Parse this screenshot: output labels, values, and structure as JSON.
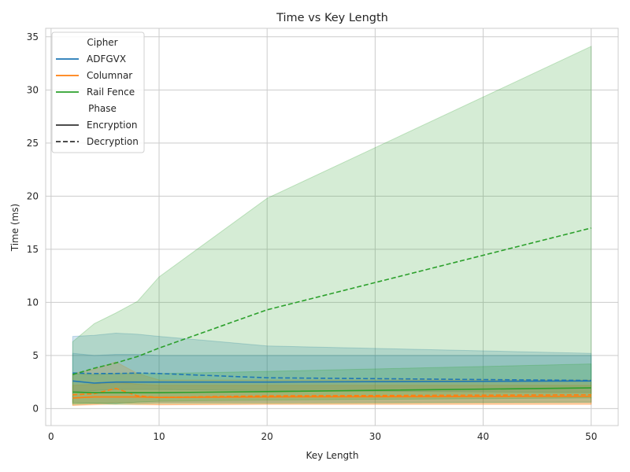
{
  "chart_data": {
    "type": "line",
    "title": "Time vs Key Length",
    "xlabel": "Key Length",
    "ylabel": "Time (ms)",
    "xlim": [
      -0.5,
      52.5
    ],
    "ylim": [
      -1.6,
      35.8
    ],
    "xticks": [
      0,
      10,
      20,
      30,
      40,
      50
    ],
    "yticks": [
      0,
      5,
      10,
      15,
      20,
      25,
      30,
      35
    ],
    "grid": true,
    "legend": {
      "placement": "top-left",
      "hue_title": "Cipher",
      "style_title": "Phase",
      "hue_entries": [
        {
          "label": "ADFGVX",
          "color": "#1f77b4"
        },
        {
          "label": "Columnar",
          "color": "#ff7f0e"
        },
        {
          "label": "Rail Fence",
          "color": "#2ca02c"
        }
      ],
      "style_entries": [
        {
          "label": "Encryption",
          "dash": "solid"
        },
        {
          "label": "Decryption",
          "dash": "dashed"
        }
      ]
    },
    "x": [
      2,
      4,
      6,
      8,
      10,
      20,
      50
    ],
    "series": [
      {
        "cipher": "ADFGVX",
        "phase": "Encryption",
        "color": "#1f77b4",
        "dash": "solid",
        "values": [
          2.6,
          2.4,
          2.5,
          2.5,
          2.5,
          2.5,
          2.6
        ],
        "ci_low": [
          0.6,
          0.5,
          0.5,
          0.6,
          0.6,
          0.6,
          0.6
        ],
        "ci_high": [
          6.8,
          6.9,
          7.1,
          7.0,
          6.8,
          5.9,
          5.2
        ]
      },
      {
        "cipher": "ADFGVX",
        "phase": "Decryption",
        "color": "#1f77b4",
        "dash": "dashed",
        "values": [
          3.35,
          3.3,
          3.3,
          3.35,
          3.3,
          2.9,
          2.65
        ],
        "ci_low": [
          1.6,
          1.7,
          1.8,
          1.8,
          1.8,
          1.7,
          1.5
        ],
        "ci_high": [
          5.2,
          5.0,
          5.1,
          5.1,
          5.0,
          5.0,
          5.0
        ]
      },
      {
        "cipher": "Columnar",
        "phase": "Encryption",
        "color": "#ff7f0e",
        "dash": "solid",
        "values": [
          1.0,
          1.1,
          1.1,
          1.1,
          1.05,
          1.1,
          1.15
        ],
        "ci_low": [
          0.3,
          0.35,
          0.4,
          0.35,
          0.35,
          0.4,
          0.4
        ],
        "ci_high": [
          2.2,
          2.3,
          2.5,
          2.3,
          2.2,
          2.2,
          2.2
        ]
      },
      {
        "cipher": "Columnar",
        "phase": "Decryption",
        "color": "#ff7f0e",
        "dash": "dashed",
        "values": [
          1.3,
          1.4,
          1.9,
          1.2,
          1.05,
          1.2,
          1.3
        ],
        "ci_low": [
          0.3,
          0.4,
          0.6,
          0.45,
          0.35,
          0.4,
          0.4
        ],
        "ci_high": [
          3.3,
          3.7,
          4.4,
          3.3,
          2.7,
          2.7,
          2.7
        ]
      },
      {
        "cipher": "Rail Fence",
        "phase": "Encryption",
        "color": "#2ca02c",
        "dash": "solid",
        "values": [
          1.55,
          1.5,
          1.5,
          1.5,
          1.5,
          1.6,
          1.95
        ],
        "ci_low": [
          0.5,
          0.5,
          0.4,
          0.45,
          0.5,
          0.5,
          0.6
        ],
        "ci_high": [
          3.3,
          3.2,
          3.3,
          3.3,
          3.3,
          3.5,
          4.2
        ]
      },
      {
        "cipher": "Rail Fence",
        "phase": "Decryption",
        "color": "#2ca02c",
        "dash": "dashed",
        "values": [
          3.2,
          3.8,
          4.3,
          4.9,
          5.7,
          9.3,
          17.0
        ],
        "ci_low": [
          0.4,
          0.5,
          0.5,
          0.6,
          0.7,
          0.8,
          1.0
        ],
        "ci_high": [
          6.3,
          8.0,
          9.0,
          10.1,
          12.4,
          19.8,
          34.1
        ]
      }
    ]
  }
}
